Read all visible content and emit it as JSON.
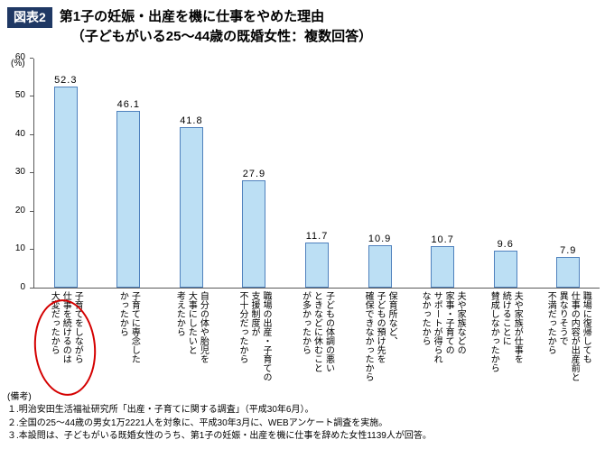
{
  "header": {
    "badge": "図表2",
    "title_line1": "第1子の妊娠・出産を機に仕事をやめた理由",
    "title_line2": "（子どもがいる25～44歳の既婚女性：複数回答）"
  },
  "chart_data": {
    "type": "bar",
    "title": "第1子の妊娠・出産を機に仕事をやめた理由（子どもがいる25～44歳の既婚女性：複数回答）",
    "unit_label": "(%)",
    "ylim": [
      0,
      60
    ],
    "y_ticks": [
      0,
      10,
      20,
      30,
      40,
      50,
      60
    ],
    "grid": false,
    "legend": false,
    "bar_fill": "#BCDFF4",
    "bar_border": "#4F81BD",
    "axis_color": "#595959",
    "categories": [
      [
        "子育てをしながら",
        "仕事を続けるのは",
        "大変だったから"
      ],
      [
        "子育てに専念した",
        "かったから"
      ],
      [
        "自分の体や胎児を",
        "大事にしたいと",
        "考えたから"
      ],
      [
        "職場の出産・子育ての",
        "支援制度が",
        "不十分だったから"
      ],
      [
        "子どもの体調の悪い",
        "ときなどに休むこと",
        "が多かったから"
      ],
      [
        "保育所など、",
        "子どもの預け先を",
        "確保できなかったから"
      ],
      [
        "夫や家族などの",
        "家事・子育ての",
        "サポートが得られ",
        "なかったから"
      ],
      [
        "夫や家族が仕事を",
        "続けることに",
        "賛成しなかったから"
      ],
      [
        "職場に復帰しても",
        "仕事の内容が出産前と",
        "異なりそうで",
        "不満だったから"
      ]
    ],
    "values": [
      52.3,
      46.1,
      41.8,
      27.9,
      11.7,
      10.9,
      10.7,
      9.6,
      7.9
    ],
    "annotation": {
      "shape": "ellipse",
      "color": "#D40000",
      "highlighted_category_index": 0
    }
  },
  "notes": {
    "heading": "(備考)",
    "items": [
      "１.明治安田生活福祉研究所「出産・子育てに関する調査」（平成30年6月）。",
      "２.全国の25～44歳の男女1万2221人を対象に、平成30年3月に、WEBアンケート調査を実施。",
      "３.本設問は、子どもがいる既婚女性のうち、第1子の妊娠・出産を機に仕事を辞めた女性1139人が回答。"
    ]
  }
}
